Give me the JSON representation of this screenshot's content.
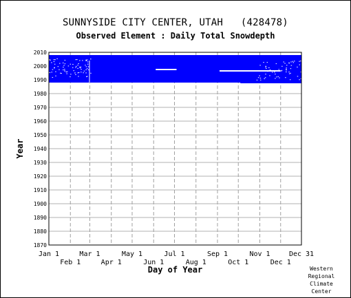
{
  "chart_data": {
    "type": "heatmap",
    "title": "SUNNYSIDE CITY CENTER, UTAH   (428478)",
    "subtitle": "Observed Element : Daily Total Snowdepth",
    "xlabel": "Day of Year",
    "ylabel": "Year",
    "xlim": [
      1,
      365
    ],
    "ylim": [
      1870,
      2010
    ],
    "grid": true,
    "series_color": "#0000ff",
    "x_ticks_top": [
      {
        "label": "Jan 1",
        "day": 1
      },
      {
        "label": "Mar 1",
        "day": 60
      },
      {
        "label": "May 1",
        "day": 121
      },
      {
        "label": "Jul 1",
        "day": 182
      },
      {
        "label": "Sep 1",
        "day": 244
      },
      {
        "label": "Nov 1",
        "day": 305
      },
      {
        "label": "Dec 31",
        "day": 365
      }
    ],
    "x_ticks_bottom": [
      {
        "label": "Feb 1",
        "day": 32
      },
      {
        "label": "Apr 1",
        "day": 91
      },
      {
        "label": "Jun 1",
        "day": 152
      },
      {
        "label": "Aug 1",
        "day": 213
      },
      {
        "label": "Oct 1",
        "day": 274
      },
      {
        "label": "Dec 1",
        "day": 335
      }
    ],
    "y_ticks": [
      "2010",
      "2000",
      "1990",
      "1980",
      "1970",
      "1960",
      "1950",
      "1940",
      "1930",
      "1920",
      "1910",
      "1900",
      "1890",
      "1880",
      "1870"
    ],
    "coverage": [
      {
        "name": "observed record",
        "day_start": 1,
        "day_end": 365,
        "year_start": 1988,
        "year_end": 2008
      },
      {
        "name": "observed record extension",
        "day_start": 277,
        "day_end": 365,
        "year_start": 1987.5,
        "year_end": 1988
      }
    ],
    "missing_segments": [
      {
        "day_start": 155,
        "day_end": 185,
        "year": 1997.5
      },
      {
        "day_start": 247,
        "day_end": 335,
        "year": 1996.5
      },
      {
        "day_start": 59,
        "day_end": 60,
        "year_start": 1988,
        "year_end": 2004
      }
    ]
  },
  "credit": [
    "Western",
    "Regional",
    "Climate",
    "Center"
  ]
}
